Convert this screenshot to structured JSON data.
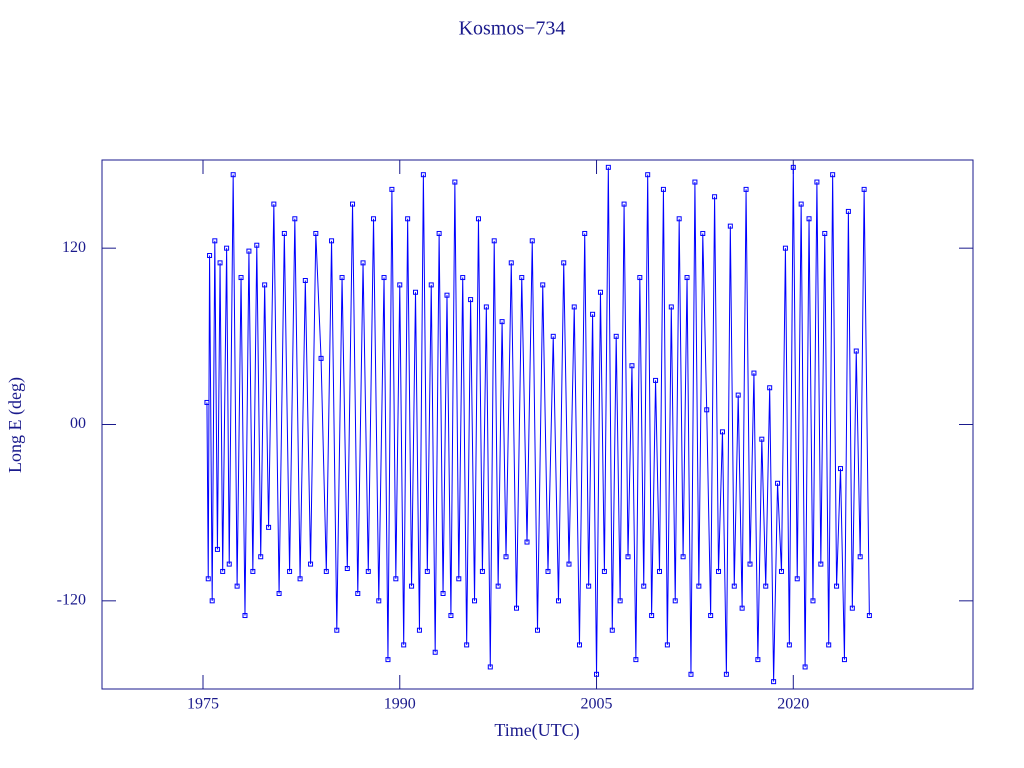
{
  "chart_data": {
    "type": "line",
    "title": "Kosmos−734",
    "x_label": "Time(UTC)",
    "y_label": "Long E (deg)",
    "xlim": [
      1967.3,
      2033.7
    ],
    "xticks": [
      1975,
      1990,
      2005,
      2020
    ],
    "ylim": [
      -180,
      180
    ],
    "yticks": [
      -120,
      {
        "value": 0,
        "label": "00"
      },
      120
    ],
    "x": [
      1975.3,
      1975.4,
      1975.5,
      1975.7,
      1975.9,
      1976.1,
      1976.3,
      1976.5,
      1976.8,
      1977.0,
      1977.3,
      1977.6,
      1977.9,
      1978.2,
      1978.5,
      1978.8,
      1979.1,
      1979.4,
      1979.7,
      1980.0,
      1980.4,
      1980.8,
      1981.2,
      1981.6,
      1982.0,
      1982.4,
      1982.8,
      1983.2,
      1983.6,
      1984.0,
      1984.4,
      1984.8,
      1985.2,
      1985.6,
      1986.0,
      1986.4,
      1986.8,
      1987.2,
      1987.6,
      1988.0,
      1988.4,
      1988.8,
      1989.1,
      1989.4,
      1989.7,
      1990.0,
      1990.3,
      1990.6,
      1990.9,
      1991.2,
      1991.5,
      1991.8,
      1992.1,
      1992.4,
      1992.7,
      1993.0,
      1993.3,
      1993.6,
      1993.9,
      1994.2,
      1994.5,
      1994.8,
      1995.1,
      1995.4,
      1995.7,
      1996.0,
      1996.3,
      1996.6,
      1996.9,
      1997.2,
      1997.5,
      1997.8,
      1998.1,
      1998.5,
      1998.9,
      1999.3,
      1999.7,
      2000.1,
      2000.5,
      2000.9,
      2001.3,
      2001.7,
      2002.1,
      2002.5,
      2002.9,
      2003.3,
      2003.7,
      2004.1,
      2004.4,
      2004.7,
      2005.0,
      2005.3,
      2005.6,
      2005.9,
      2006.2,
      2006.5,
      2006.8,
      2007.1,
      2007.4,
      2007.7,
      2008.0,
      2008.3,
      2008.6,
      2008.9,
      2009.2,
      2009.5,
      2009.8,
      2010.1,
      2010.4,
      2010.7,
      2011.0,
      2011.3,
      2011.6,
      2011.9,
      2012.2,
      2012.5,
      2012.8,
      2013.1,
      2013.4,
      2013.7,
      2014.0,
      2014.3,
      2014.6,
      2014.9,
      2015.2,
      2015.5,
      2015.8,
      2016.1,
      2016.4,
      2016.7,
      2017.0,
      2017.3,
      2017.6,
      2017.9,
      2018.2,
      2018.5,
      2018.8,
      2019.1,
      2019.4,
      2019.7,
      2020.0,
      2020.3,
      2020.6,
      2020.9,
      2021.2,
      2021.5,
      2021.8,
      2022.1,
      2022.4,
      2022.7,
      2023.0,
      2023.3,
      2023.6,
      2023.9,
      2024.2,
      2024.5,
      2024.8,
      2025.1,
      2025.4,
      2025.8
    ],
    "series": [
      {
        "color": "#0000ff",
        "values": [
          15,
          -105,
          115,
          -120,
          125,
          -85,
          110,
          -100,
          120,
          -95,
          170,
          -110,
          100,
          -130,
          118,
          -100,
          122,
          -90,
          95,
          -70,
          150,
          -115,
          130,
          -100,
          140,
          -105,
          98,
          -95,
          130,
          45,
          -100,
          125,
          -140,
          100,
          -98,
          150,
          -115,
          110,
          -100,
          140,
          -120,
          100,
          -160,
          160,
          -105,
          95,
          -150,
          140,
          -110,
          90,
          -140,
          170,
          -100,
          95,
          -155,
          130,
          -115,
          88,
          -130,
          165,
          -105,
          100,
          -150,
          85,
          -120,
          140,
          -100,
          80,
          -165,
          125,
          -110,
          70,
          -90,
          110,
          -125,
          100,
          -80,
          125,
          -140,
          95,
          -100,
          60,
          -120,
          110,
          -95,
          80,
          -150,
          130,
          -110,
          75,
          -170,
          90,
          -100,
          175,
          -140,
          60,
          -120,
          150,
          -90,
          40,
          -160,
          100,
          -110,
          170,
          -130,
          30,
          -100,
          160,
          -150,
          80,
          -120,
          140,
          -90,
          100,
          -170,
          165,
          -110,
          130,
          10,
          -130,
          155,
          -100,
          -5,
          -170,
          135,
          -110,
          20,
          -125,
          160,
          -95,
          35,
          -160,
          -10,
          -110,
          25,
          -175,
          -40,
          -100,
          120,
          -150,
          175,
          -105,
          150,
          -165,
          140,
          -120,
          165,
          -95,
          130,
          -150,
          170,
          -110,
          -30,
          -160,
          145,
          -125,
          50,
          -90,
          160,
          -130
        ]
      }
    ]
  }
}
